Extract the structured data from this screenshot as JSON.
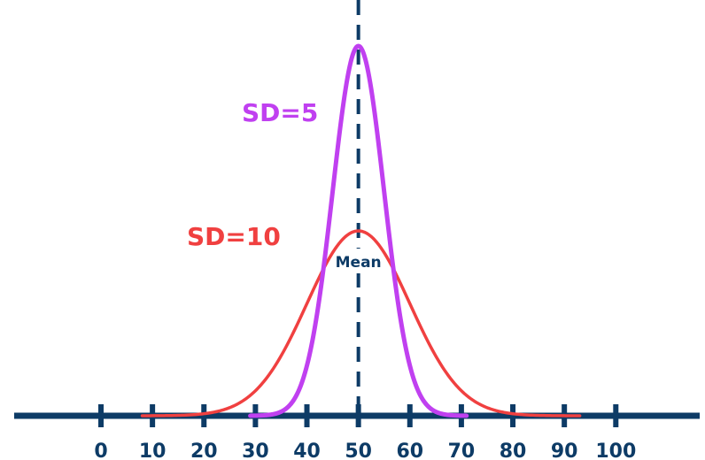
{
  "chart_data": {
    "type": "line",
    "title": "",
    "xlabel": "",
    "ylabel": "",
    "xlim": [
      0,
      100
    ],
    "x_ticks": [
      0,
      10,
      20,
      30,
      40,
      50,
      60,
      70,
      80,
      90,
      100
    ],
    "tick_labels": [
      "0",
      "10",
      "20",
      "30",
      "40",
      "50",
      "60",
      "70",
      "80",
      "90",
      "100"
    ],
    "grid": false,
    "legend": "none",
    "axis_color": "#0d3b66",
    "series": [
      {
        "name": "SD=10",
        "distribution": "normal",
        "mean": 50,
        "sd": 10,
        "x_range": [
          8,
          93
        ],
        "color": "#f04040"
      },
      {
        "name": "SD=5",
        "distribution": "normal",
        "mean": 50,
        "sd": 5,
        "x_range": [
          29,
          71
        ],
        "color": "#c040f0"
      }
    ],
    "annotations": {
      "mean_line": {
        "x": 50,
        "label": "Mean",
        "style": "dashed",
        "color": "#0d3b66"
      }
    }
  }
}
